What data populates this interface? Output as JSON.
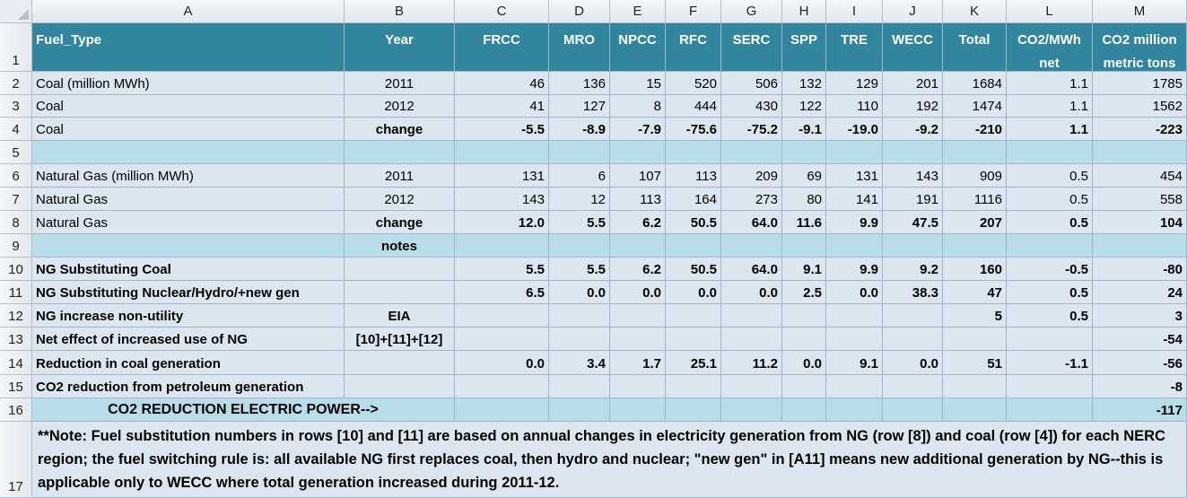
{
  "columns": [
    "A",
    "B",
    "C",
    "D",
    "E",
    "F",
    "G",
    "H",
    "I",
    "J",
    "K",
    "L",
    "M"
  ],
  "row_numbers": [
    "1",
    "2",
    "3",
    "4",
    "5",
    "6",
    "7",
    "8",
    "9",
    "10",
    "11",
    "12",
    "13",
    "14",
    "15",
    "16",
    "17"
  ],
  "rows": [
    [
      "Fuel_Type",
      "Year",
      "FRCC",
      "MRO",
      "NPCC",
      "RFC",
      "SERC",
      "SPP",
      "TRE",
      "WECC",
      "Total",
      "CO2/MWh net",
      "CO2 million metric tons"
    ],
    [
      "Coal (million MWh)",
      "2011",
      "46",
      "136",
      "15",
      "520",
      "506",
      "132",
      "129",
      "201",
      "1684",
      "1.1",
      "1785"
    ],
    [
      "Coal",
      "2012",
      "41",
      "127",
      "8",
      "444",
      "430",
      "122",
      "110",
      "192",
      "1474",
      "1.1",
      "1562"
    ],
    [
      "Coal",
      "change",
      "-5.5",
      "-8.9",
      "-7.9",
      "-75.6",
      "-75.2",
      "-9.1",
      "-19.0",
      "-9.2",
      "-210",
      "1.1",
      "-223"
    ],
    [
      "",
      "",
      "",
      "",
      "",
      "",
      "",
      "",
      "",
      "",
      "",
      "",
      ""
    ],
    [
      "Natural Gas (million MWh)",
      "2011",
      "131",
      "6",
      "107",
      "113",
      "209",
      "69",
      "131",
      "143",
      "909",
      "0.5",
      "454"
    ],
    [
      "Natural Gas",
      "2012",
      "143",
      "12",
      "113",
      "164",
      "273",
      "80",
      "141",
      "191",
      "1116",
      "0.5",
      "558"
    ],
    [
      "Natural Gas",
      "change",
      "12.0",
      "5.5",
      "6.2",
      "50.5",
      "64.0",
      "11.6",
      "9.9",
      "47.5",
      "207",
      "0.5",
      "104"
    ],
    [
      "",
      "notes",
      "",
      "",
      "",
      "",
      "",
      "",
      "",
      "",
      "",
      "",
      ""
    ],
    [
      "NG Substituting Coal",
      "",
      "5.5",
      "5.5",
      "6.2",
      "50.5",
      "64.0",
      "9.1",
      "9.9",
      "9.2",
      "160",
      "-0.5",
      "-80"
    ],
    [
      "NG Substituting Nuclear/Hydro/+new gen",
      "",
      "6.5",
      "0.0",
      "0.0",
      "0.0",
      "0.0",
      "2.5",
      "0.0",
      "38.3",
      "47",
      "0.5",
      "24"
    ],
    [
      "NG increase non-utility",
      "EIA",
      "",
      "",
      "",
      "",
      "",
      "",
      "",
      "",
      "5",
      "0.5",
      "3"
    ],
    [
      "Net effect of increased use of NG",
      "[10]+[11]+[12]",
      "",
      "",
      "",
      "",
      "",
      "",
      "",
      "",
      "",
      "",
      "-54"
    ],
    [
      "Reduction in coal generation",
      "",
      "0.0",
      "3.4",
      "1.7",
      "25.1",
      "11.2",
      "0.0",
      "9.1",
      "0.0",
      "51",
      "-1.1",
      "-56"
    ],
    [
      "CO2 reduction from petroleum generation",
      "",
      "",
      "",
      "",
      "",
      "",
      "",
      "",
      "",
      "",
      "",
      "-8"
    ],
    [
      "CO2 REDUCTION ELECTRIC POWER-->",
      "",
      "",
      "",
      "",
      "",
      "",
      "",
      "",
      "",
      "",
      "",
      "-117"
    ]
  ],
  "note": "**Note: Fuel substitution numbers in rows [10] and [11] are based on annual changes in electricity generation from NG (row [8]) and coal (row [4]) for each NERC region; the fuel switching rule is: all available NG first replaces coal, then hydro and nuclear; \"new gen\" in [A11] means new additional generation by NG--this is applicable only to WECC where total generation increased during 2011-12."
}
